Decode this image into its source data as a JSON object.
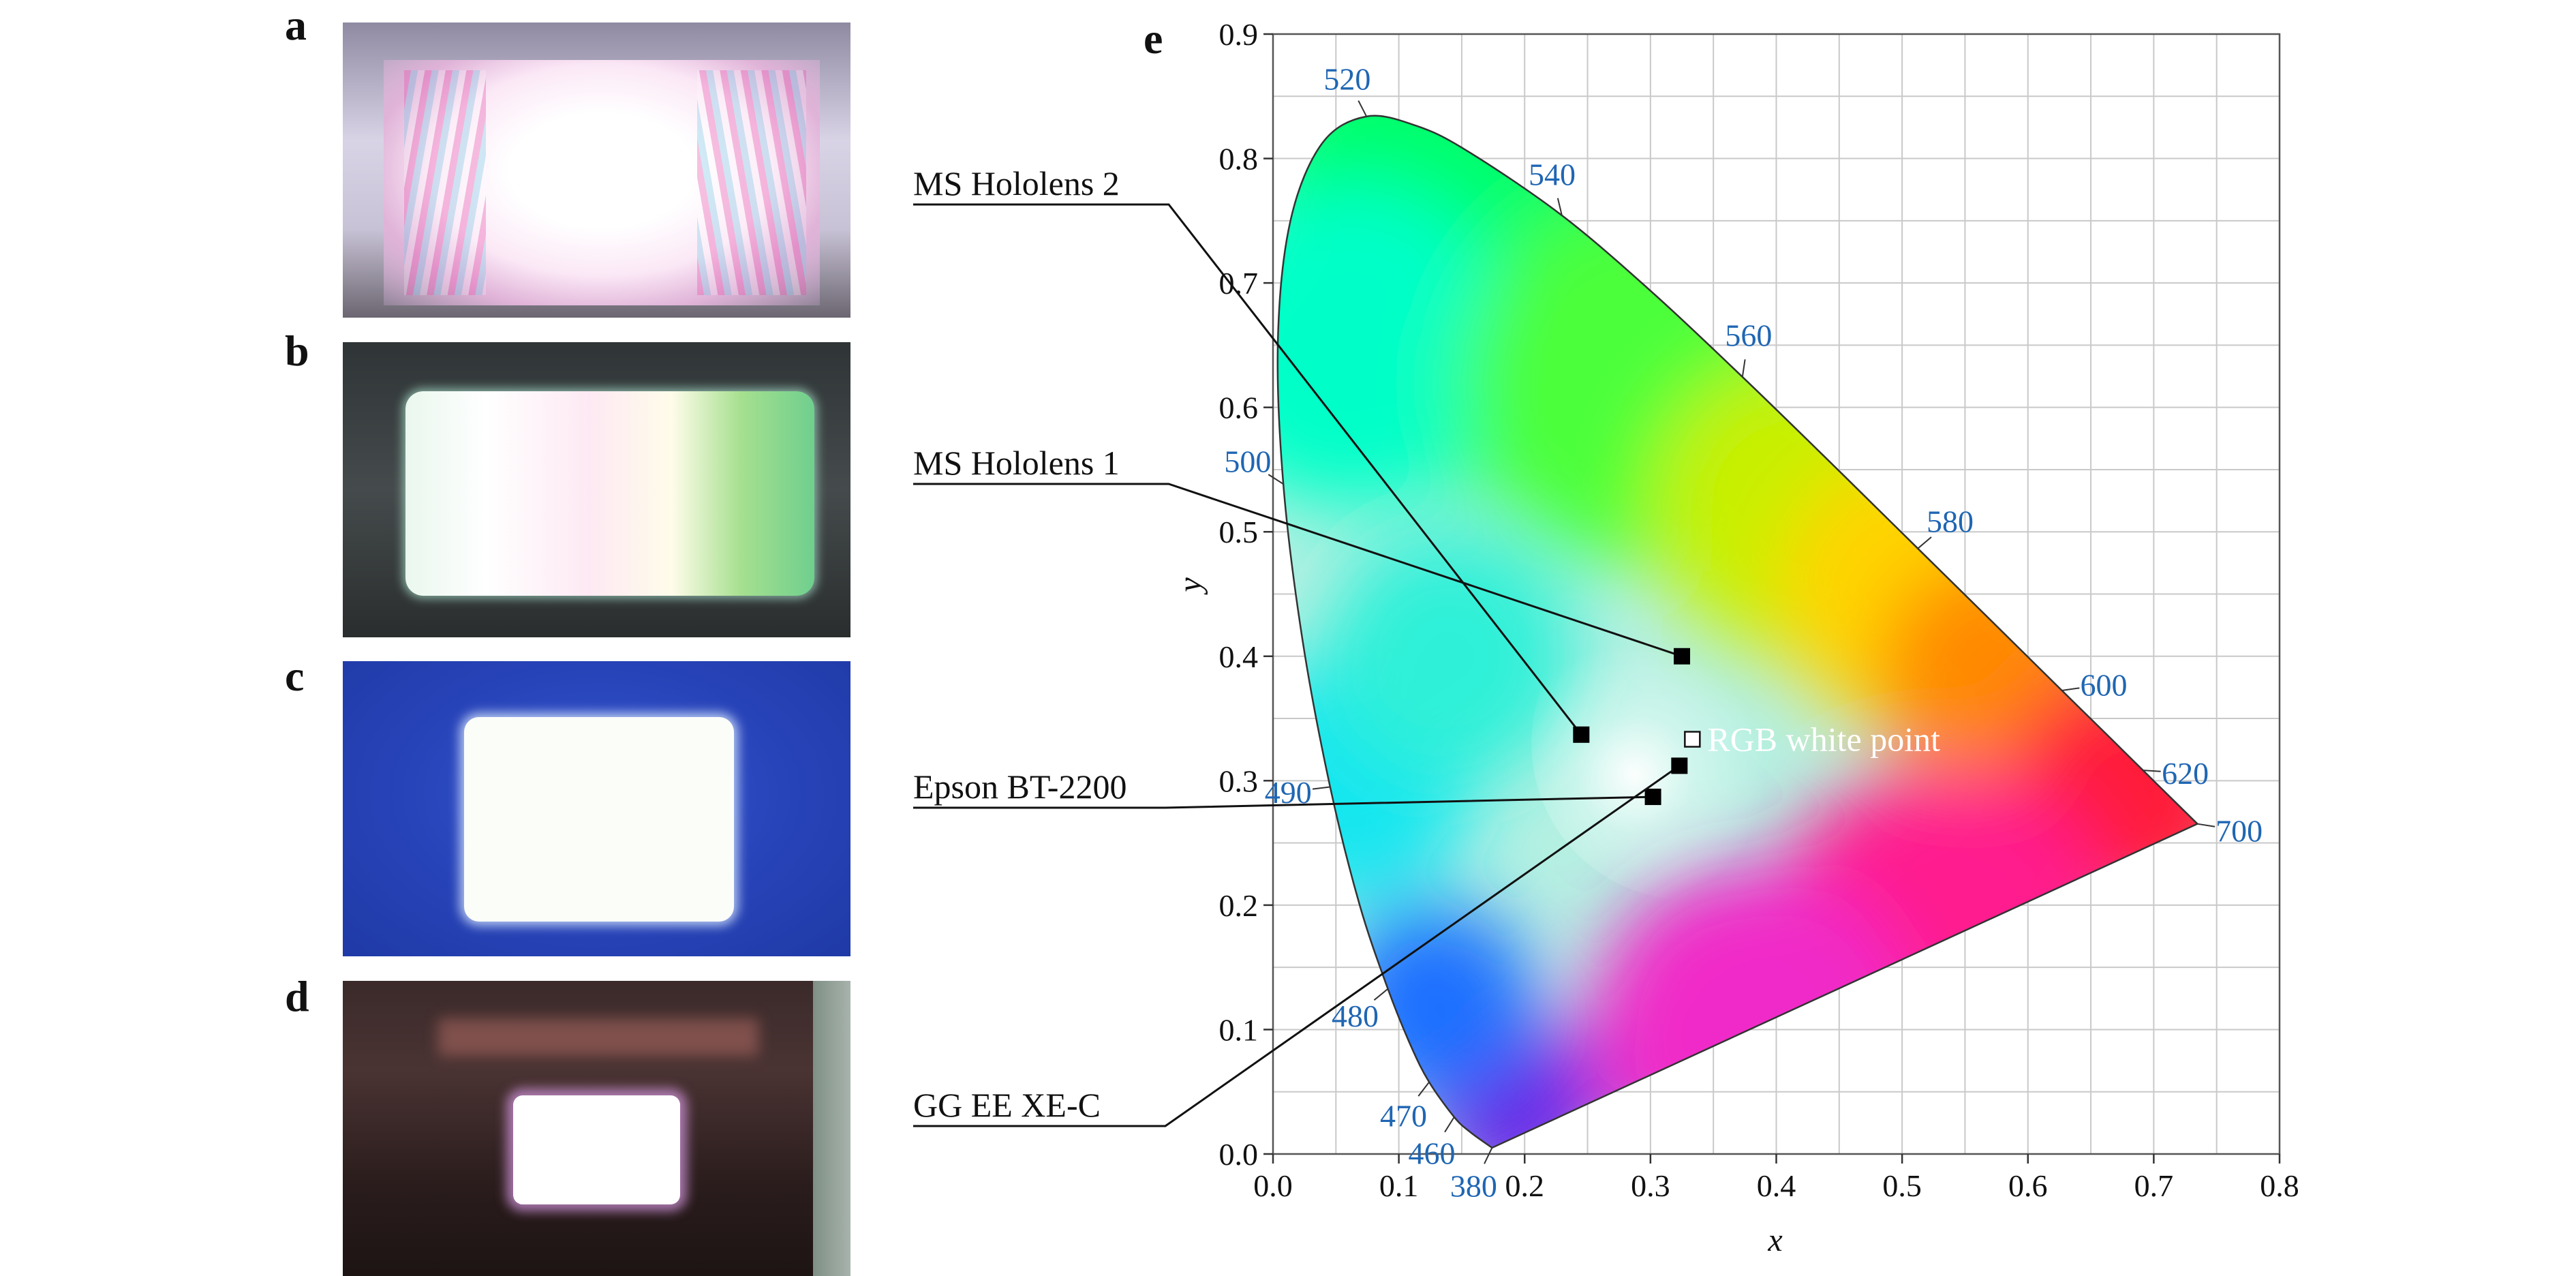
{
  "panels": [
    {
      "letter": "a",
      "bg": "#b9b4c4",
      "screen": "#ffffff",
      "tint": "#e6b9df"
    },
    {
      "letter": "b",
      "bg": "#3a3c3d",
      "screen": "#f4fff0",
      "tint": "#9ad9a0"
    },
    {
      "letter": "c",
      "bg": "#2a49c2",
      "screen": "#fbfdfa",
      "tint": "#2a49c2"
    },
    {
      "letter": "d",
      "bg": "#2c1d1d",
      "screen": "#ffffff",
      "tint": "#d5a3d6"
    }
  ],
  "chart_data": {
    "type": "scatter",
    "panel_label": "e",
    "xlabel": "x",
    "ylabel": "y",
    "xlim": [
      0,
      0.8
    ],
    "ylim": [
      0,
      0.9
    ],
    "x_ticks": [
      0.0,
      0.1,
      0.2,
      0.3,
      0.4,
      0.5,
      0.6,
      0.7,
      0.8
    ],
    "x_tick_labels": [
      "0.0",
      "0.1",
      "0.2",
      "0.3",
      "0.4",
      "0.5",
      "0.6",
      "0.7",
      "0.8"
    ],
    "y_ticks": [
      0.0,
      0.1,
      0.2,
      0.3,
      0.4,
      0.5,
      0.6,
      0.7,
      0.8,
      0.9
    ],
    "y_tick_labels": [
      "0.0",
      "0.1",
      "0.2",
      "0.3",
      "0.4",
      "0.5",
      "0.6",
      "0.7",
      "0.8",
      "0.9"
    ],
    "grid": true,
    "wavelength_label_color": "#1f66b3",
    "spectral_locus": [
      {
        "nm": 380,
        "x": 0.1741,
        "y": 0.005,
        "label": "380"
      },
      {
        "nm": 450,
        "x": 0.1566,
        "y": 0.0177
      },
      {
        "nm": 460,
        "x": 0.144,
        "y": 0.0297,
        "label": "460"
      },
      {
        "nm": 470,
        "x": 0.1241,
        "y": 0.0578,
        "label": "470"
      },
      {
        "nm": 475,
        "x": 0.1096,
        "y": 0.0868
      },
      {
        "nm": 480,
        "x": 0.0913,
        "y": 0.1327,
        "label": "480"
      },
      {
        "nm": 485,
        "x": 0.0687,
        "y": 0.2007
      },
      {
        "nm": 490,
        "x": 0.0454,
        "y": 0.295,
        "label": "490"
      },
      {
        "nm": 495,
        "x": 0.0235,
        "y": 0.4127
      },
      {
        "nm": 500,
        "x": 0.0082,
        "y": 0.5384,
        "label": "500"
      },
      {
        "nm": 505,
        "x": 0.0039,
        "y": 0.6548
      },
      {
        "nm": 510,
        "x": 0.0139,
        "y": 0.7502
      },
      {
        "nm": 515,
        "x": 0.0389,
        "y": 0.812
      },
      {
        "nm": 520,
        "x": 0.0743,
        "y": 0.8338,
        "label": "520"
      },
      {
        "nm": 525,
        "x": 0.1142,
        "y": 0.8262
      },
      {
        "nm": 530,
        "x": 0.1547,
        "y": 0.8059
      },
      {
        "nm": 540,
        "x": 0.2296,
        "y": 0.7543,
        "label": "540"
      },
      {
        "nm": 550,
        "x": 0.3016,
        "y": 0.6923
      },
      {
        "nm": 560,
        "x": 0.3731,
        "y": 0.6245,
        "label": "560"
      },
      {
        "nm": 570,
        "x": 0.4441,
        "y": 0.5547
      },
      {
        "nm": 580,
        "x": 0.5125,
        "y": 0.4866,
        "label": "580"
      },
      {
        "nm": 590,
        "x": 0.5752,
        "y": 0.4242
      },
      {
        "nm": 600,
        "x": 0.627,
        "y": 0.3725,
        "label": "600"
      },
      {
        "nm": 610,
        "x": 0.6658,
        "y": 0.334
      },
      {
        "nm": 620,
        "x": 0.6915,
        "y": 0.3083,
        "label": "620"
      },
      {
        "nm": 640,
        "x": 0.719,
        "y": 0.2809
      },
      {
        "nm": 700,
        "x": 0.7347,
        "y": 0.2653,
        "label": "700"
      }
    ],
    "series": [
      {
        "name": "MS Hololens 2",
        "x": 0.245,
        "y": 0.337,
        "marker": "filled-square"
      },
      {
        "name": "MS Hololens 1",
        "x": 0.325,
        "y": 0.4,
        "marker": "filled-square"
      },
      {
        "name": "Epson BT-2200",
        "x": 0.302,
        "y": 0.287,
        "marker": "filled-square"
      },
      {
        "name": "GG EE XE-C",
        "x": 0.323,
        "y": 0.312,
        "marker": "filled-square"
      },
      {
        "name": "RGB white point",
        "x": 0.3333,
        "y": 0.3333,
        "marker": "open-square"
      }
    ]
  }
}
